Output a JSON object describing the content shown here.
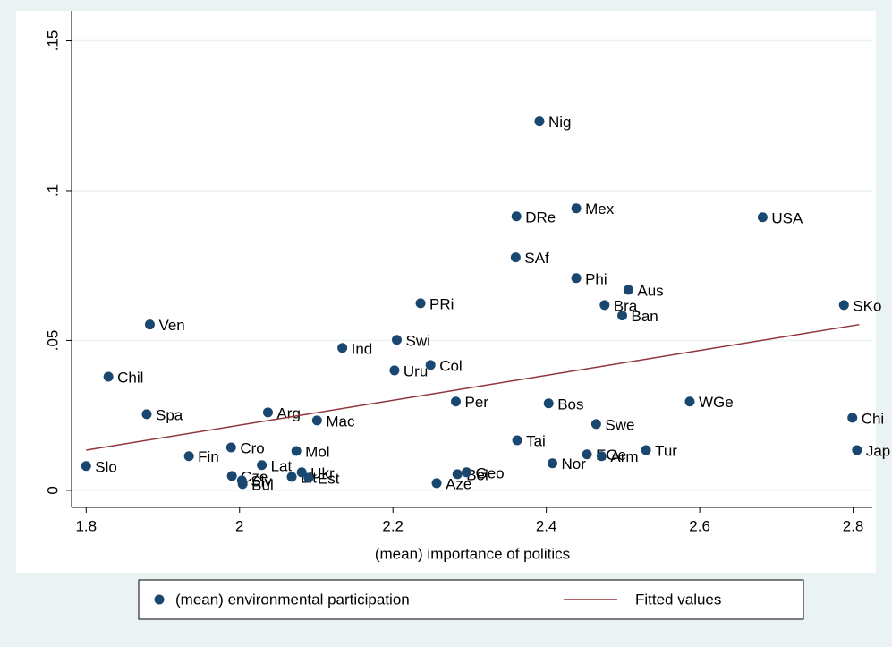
{
  "chart_data": {
    "type": "scatter",
    "xlabel": "(mean) importance of politics",
    "xlim": [
      1.781,
      2.825
    ],
    "xticks": [
      1.8,
      2,
      2.2,
      2.4,
      2.6,
      2.8
    ],
    "ylim": [
      -0.0057,
      0.16
    ],
    "yticks": [
      0,
      {
        "value": 0.05,
        "label": ".05"
      },
      {
        "value": 0.1,
        "label": ".1"
      },
      {
        "value": 0.15,
        "label": ".15"
      }
    ],
    "grid": true,
    "legend": "bottom",
    "series": [
      {
        "name": "(mean) environmental participation",
        "type": "scatter",
        "color": "#1a476f",
        "labels": [
          "Slo",
          "Chil",
          "Spa",
          "Ven",
          "Fin",
          "Cro",
          "Cze",
          "Slv",
          "Bul",
          "Lat",
          "Arg",
          "Mol",
          "Lit",
          "Ukr",
          "Est",
          "Mac",
          "Ind",
          "Swi",
          "Uru",
          "Col",
          "PRi",
          "Per",
          "Aze",
          "Bel",
          "Geo",
          "Tai",
          "SAf",
          "DRe",
          "Nig",
          "Bos",
          "Nor",
          "Mex",
          "Phi",
          "Swe",
          "EGe",
          "Arm",
          "Bra",
          "Ban",
          "Aus",
          "Tur",
          "WGe",
          "USA",
          "SKo",
          "Chi",
          "Jap"
        ],
        "x": [
          1.8,
          1.829,
          1.879,
          1.883,
          1.934,
          1.989,
          1.99,
          2.003,
          2.004,
          2.029,
          2.037,
          2.074,
          2.068,
          2.081,
          2.09,
          2.101,
          2.134,
          2.205,
          2.202,
          2.249,
          2.236,
          2.282,
          2.257,
          2.284,
          2.296,
          2.362,
          2.36,
          2.361,
          2.391,
          2.403,
          2.408,
          2.439,
          2.439,
          2.465,
          2.453,
          2.472,
          2.476,
          2.499,
          2.507,
          2.53,
          2.587,
          2.682,
          2.788,
          2.799,
          2.805
        ],
        "values": [
          0.0081,
          0.0379,
          0.0254,
          0.0553,
          0.0114,
          0.0143,
          0.0048,
          0.0033,
          0.0021,
          0.0084,
          0.026,
          0.0131,
          0.0045,
          0.006,
          0.0042,
          0.0233,
          0.0475,
          0.0502,
          0.04,
          0.0418,
          0.0624,
          0.0296,
          0.0024,
          0.0054,
          0.006,
          0.0167,
          0.0777,
          0.0914,
          0.1231,
          0.029,
          0.009,
          0.0941,
          0.0708,
          0.0221,
          0.012,
          0.0114,
          0.0618,
          0.0583,
          0.0669,
          0.0134,
          0.0296,
          0.0911,
          0.0618,
          0.0242,
          0.0134
        ]
      },
      {
        "name": "Fitted values",
        "type": "line",
        "color": "#90353b",
        "x": [
          1.8,
          2.808
        ],
        "values": [
          0.0134,
          0.0553
        ]
      }
    ]
  }
}
